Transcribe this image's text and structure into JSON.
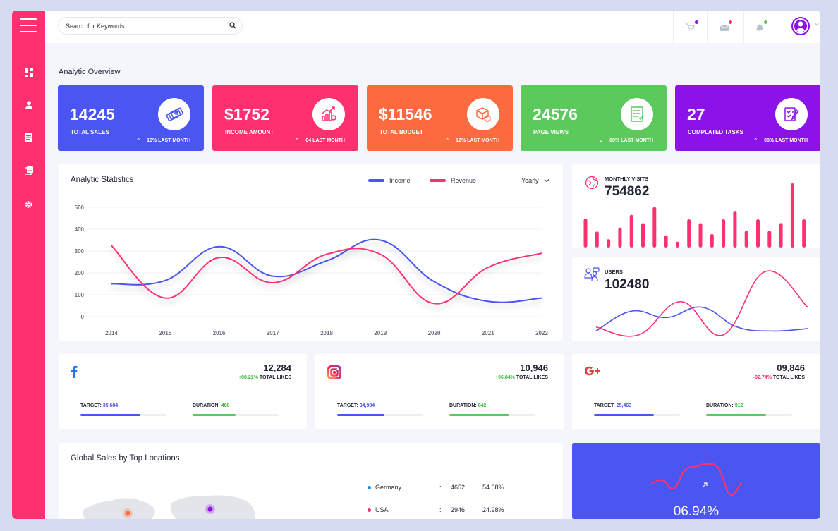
{
  "search": {
    "placeholder": "Search for Keywords..."
  },
  "page_title": "Analytic Overview",
  "stats": [
    {
      "value": "14245",
      "label": "TOTAL SALES",
      "trend": "16% LAST MONTH",
      "direction": "up",
      "color": "#4a55f2"
    },
    {
      "value": "$1752",
      "label": "INCOME AMOUNT",
      "trend": "04 LAST MONTH",
      "direction": "up",
      "color": "#fe306f"
    },
    {
      "value": "$11546",
      "label": "TOTAL BUDGET",
      "trend": "12% LAST MONTH",
      "direction": "up",
      "color": "#fd6a40"
    },
    {
      "value": "24576",
      "label": "PAGE VIEWS",
      "trend": "08% LAST MONTH",
      "direction": "down",
      "color": "#5bc95b"
    },
    {
      "value": "27",
      "label": "COMPLATED TASKS",
      "trend": "08% LAST MONTH",
      "direction": "up",
      "color": "#8b12e8"
    }
  ],
  "analytic": {
    "title": "Analytic Statistics",
    "legend_income": "Income",
    "legend_revenue": "Revenue",
    "period": "Yearly"
  },
  "chart_data": [
    {
      "type": "line",
      "x": [
        "2014",
        "2015",
        "2016",
        "2017",
        "2018",
        "2019",
        "2020",
        "2021",
        "2022"
      ],
      "ylim": [
        0,
        500
      ],
      "yticks": [
        0,
        100,
        200,
        300,
        400,
        500
      ],
      "grid": true,
      "legend": "top-right",
      "series": [
        {
          "name": "Income",
          "color": "#4a55f2",
          "values": [
            150,
            165,
            320,
            185,
            255,
            350,
            160,
            70,
            85
          ]
        },
        {
          "name": "Revenue",
          "color": "#fe306f",
          "values": [
            325,
            85,
            270,
            155,
            285,
            285,
            60,
            225,
            290
          ]
        }
      ]
    },
    {
      "type": "bar",
      "color": "#fe306f",
      "values": [
        45,
        25,
        13,
        31,
        51,
        38,
        63,
        19,
        9,
        44,
        38,
        21,
        44,
        57,
        26,
        44,
        26,
        38,
        100,
        44
      ]
    },
    {
      "type": "line",
      "series": [
        {
          "color": "#4a55f2",
          "values": [
            5,
            30,
            22,
            35,
            10,
            5,
            8
          ]
        },
        {
          "color": "#fe306f",
          "values": [
            10,
            0,
            42,
            0,
            80,
            35
          ]
        }
      ]
    },
    {
      "type": "line",
      "color": "#fe306f",
      "values": [
        20,
        25,
        14,
        38,
        43,
        46,
        40,
        6,
        22
      ]
    }
  ],
  "visits": {
    "label": "MONTHLY VISITS",
    "value": "754862"
  },
  "users": {
    "label": "USERS",
    "value": "102480"
  },
  "social": [
    {
      "count": "12,284",
      "change": "+08.21%",
      "change_color": "#3db83d",
      "likes": "TOTAL LIKES",
      "target_label": "TARGET:",
      "target": "35,684",
      "target_pct": 70,
      "target_color": "#4a55f2",
      "duration_label": "DURATION:",
      "duration": "468",
      "duration_pct": 50,
      "duration_color": "#5bc95b"
    },
    {
      "count": "10,946",
      "change": "+06.84%",
      "change_color": "#3db83d",
      "likes": "TOTAL LIKES",
      "target_label": "TARGET:",
      "target": "34,984",
      "target_pct": 55,
      "target_color": "#4a55f2",
      "duration_label": "DURATION:",
      "duration": "842",
      "duration_pct": 70,
      "duration_color": "#5bc95b"
    },
    {
      "count": "09,846",
      "change": "-02.74%",
      "change_color": "#fe306f",
      "likes": "TOTAL LIKES",
      "target_label": "TARGET:",
      "target": "25,463",
      "target_pct": 70,
      "target_color": "#4a55f2",
      "duration_label": "DURATION:",
      "duration": "912",
      "duration_pct": 70,
      "duration_color": "#5bc95b"
    }
  ],
  "global_sales": {
    "title": "Global Sales by Top Locations",
    "locations": [
      {
        "country": "Germany",
        "colon": ":",
        "value": "4652",
        "percent": "54.68%",
        "color": "#1a8de3"
      },
      {
        "country": "USA",
        "colon": ":",
        "value": "2946",
        "percent": "24.98%",
        "color": "#fe306f"
      }
    ]
  },
  "percent_card": {
    "value": "06.94%"
  }
}
